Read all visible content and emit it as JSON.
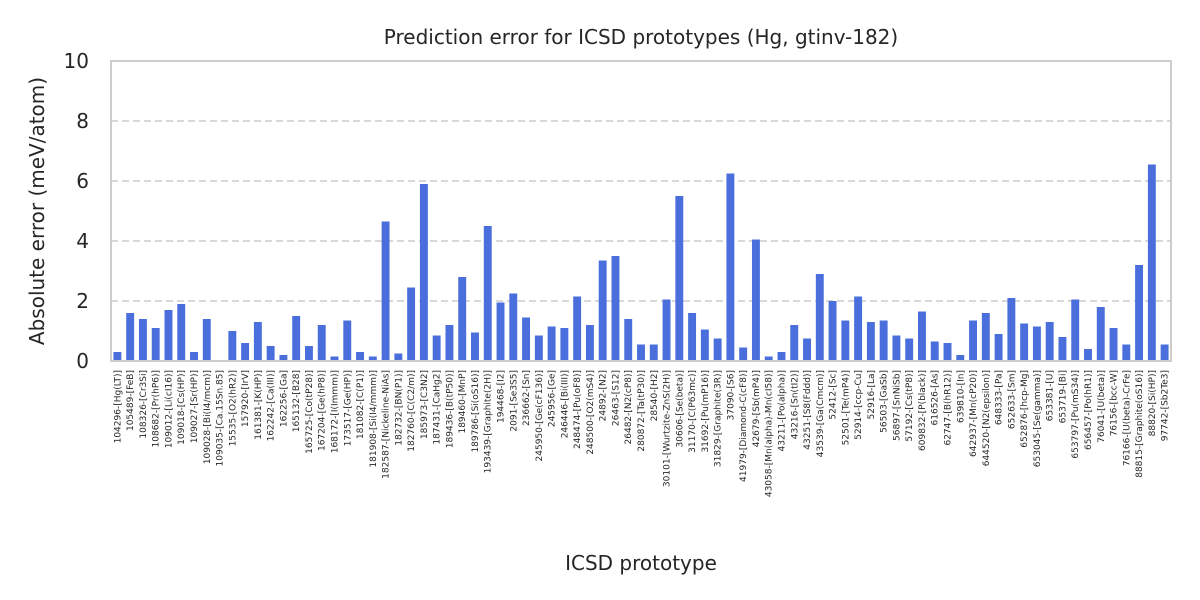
{
  "chart_data": {
    "type": "bar",
    "title": "Prediction error for ICSD prototypes (Hg, gtinv-182)",
    "xlabel": "ICSD prototype",
    "ylabel": "Absolute error (meV/atom)",
    "ylim": [
      0,
      10
    ],
    "yticks": [
      0,
      2,
      4,
      6,
      8,
      10
    ],
    "grid": true,
    "bar_color": "#4a6fdc",
    "categories": [
      "104296-[Hg(LT)]",
      "105489-[FeB]",
      "108326-[Cr3Si]",
      "108682-[Pr(hP6)]",
      "109012-[Li(cI16)]",
      "109018-[Cs(HP)]",
      "109027-[Sr(HP)]",
      "109028-[Bi(I4/mcm)]",
      "109035-[Ca.15Sn.85]",
      "15535-[O2(hR2)]",
      "157920-[IrV]",
      "161381-[K(HP)]",
      "162242-[Ca(III)]",
      "162256-[Ga]",
      "165132-[B28]",
      "165725-[Co(tP28)]",
      "167204-[Ge(hP8)]",
      "168172-[I(Immm)]",
      "173517-[Ge(HP)]",
      "181082-[C(P1)]",
      "181908-[Si(I4/mmm)]",
      "182587-[Nickeline-NiAs]",
      "182732-[BN(P1)]",
      "182760-[C(C2/m)]",
      "185973-[C3N2]",
      "187431-[CaHg2]",
      "189436-[B(tP50)]",
      "189460-[MnP]",
      "189786-[Si(oS16)]",
      "193439-[Graphite(2H)]",
      "194468-[I2]",
      "2091-[Se3S5]",
      "236662-[Sn]",
      "245950-[Ge(cF136)]",
      "245956-[Ge]",
      "246446-[Bi(III)]",
      "248474-[Pu(oF8)]",
      "248500-[O2(mS4)]",
      "24892-[N2]",
      "26463-[S12]",
      "26482-[N2(cP8)]",
      "280872-[Ta(tP30)]",
      "28540-[H2]",
      "30101-[Wurtzite-ZnS(2H)]",
      "30606-[Se(beta)]",
      "31170-[C(P63mc)]",
      "31692-[Pu(mP16)]",
      "31829-[Graphite(3R)]",
      "37090-[S6]",
      "41979-[Diamond-C(cF8)]",
      "42679-[Sb(mP4)]",
      "43058-[Mn(alpha)-Mn(cI58)]",
      "43211-[Po(alpha)]",
      "43216-[Sn(tI2)]",
      "43251-[S8(Fddd)]",
      "43539-[Ga(Cmcm)]",
      "52412-[Sc]",
      "52501-[Te(mP4)]",
      "52914-[ccp-Cu]",
      "52916-[La]",
      "56503-[GaSb]",
      "56897-[SnNiSb]",
      "57192-[Cs(tP8)]",
      "609832-[P(black)]",
      "616526-[As]",
      "62747-[B(hR12)]",
      "639810-[In]",
      "642937-[Mn(cP20)]",
      "644520-[N2(epsilon)]",
      "648333-[Pa]",
      "652633-[Sm]",
      "652876-[hcp-Mg]",
      "653045-[Se(gamma)]",
      "653381-[U]",
      "653719-[Bi]",
      "653797-[Pu(mS34)]",
      "656457-[Po(hR1)]",
      "76041-[U(beta)]",
      "76156-[bcc-W]",
      "76166-[U(beta)-CrFe]",
      "88815-[Graphite(oS16)]",
      "88820-[Si(HP)]",
      "97742-[Sb2Te3]"
    ],
    "values": [
      0.3,
      1.6,
      1.4,
      1.1,
      1.7,
      1.9,
      0.3,
      1.4,
      0.0,
      1.0,
      0.6,
      1.3,
      0.5,
      0.2,
      1.5,
      0.5,
      1.2,
      0.15,
      1.35,
      0.3,
      0.15,
      4.65,
      0.25,
      2.45,
      5.9,
      0.85,
      1.2,
      2.8,
      0.95,
      4.5,
      1.95,
      2.25,
      1.45,
      0.85,
      1.15,
      1.1,
      2.15,
      1.2,
      3.35,
      3.5,
      1.4,
      0.55,
      0.55,
      2.05,
      5.5,
      1.6,
      1.05,
      0.75,
      6.25,
      0.45,
      4.05,
      0.15,
      0.3,
      1.2,
      0.75,
      2.9,
      2.0,
      1.35,
      2.15,
      1.3,
      1.35,
      0.85,
      0.75,
      1.65,
      0.65,
      0.6,
      0.2,
      1.35,
      1.6,
      0.9,
      2.1,
      1.25,
      1.15,
      1.3,
      0.8,
      2.05,
      0.4,
      1.8,
      1.1,
      0.55,
      3.2,
      6.55,
      0.55
    ]
  }
}
